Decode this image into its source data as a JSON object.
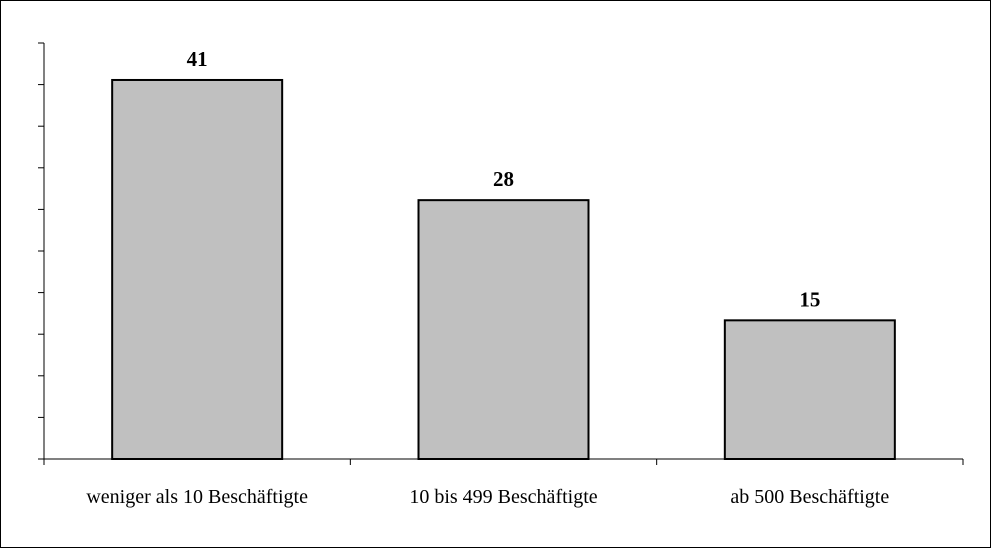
{
  "chart_data": {
    "type": "bar",
    "title": "",
    "xlabel": "",
    "ylabel": "",
    "categories": [
      "weniger als 10 Beschäftigte",
      "10 bis 499  Beschäftigte",
      "ab 500 Beschäftigte"
    ],
    "values": [
      41,
      28,
      15
    ],
    "data_labels": [
      "41",
      "28",
      "15"
    ],
    "ylim": [
      0,
      45
    ],
    "y_tick_count": 10,
    "y_tick_labels_shown": false,
    "grid": false,
    "legend": "none",
    "bar_color": "#c0c0c0",
    "bar_edge_color": "#000000"
  }
}
